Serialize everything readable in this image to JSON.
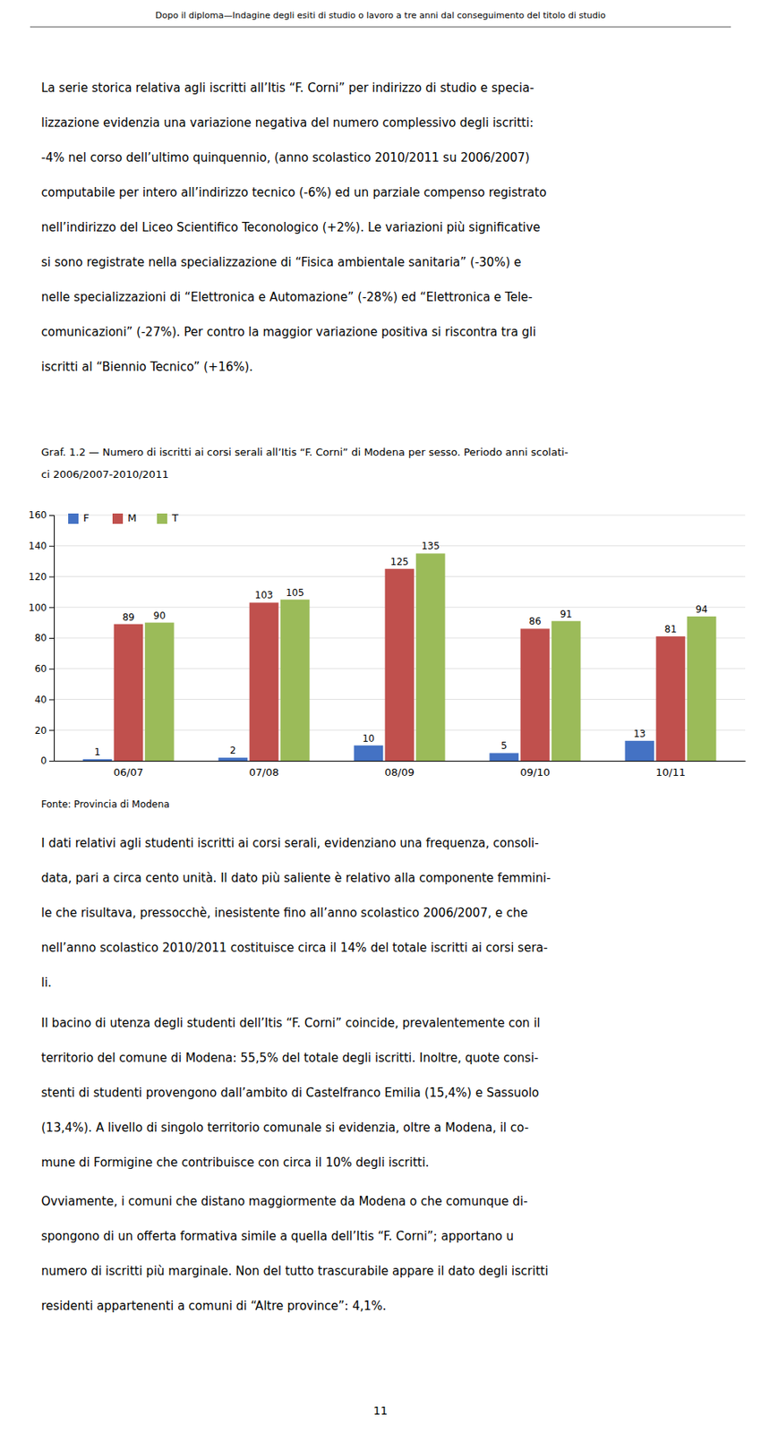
{
  "header": "Dopo il diploma—Indagine degli esiti di studio o lavoro a tre anni dal conseguimento del titolo di studio",
  "para1_lines": [
    "La serie storica relativa agli iscritti all’Itis “F. Corni”  per indirizzo di studio e specia-",
    "lizzazione evidenzia una variazione negativa del numero complessivo degli iscritti:",
    "-4% nel corso dell’ultimo quinquennio, (anno scolastico 2010/2011 su 2006/2007)",
    "computabile per intero all’indirizzo tecnico (-6%) ed un parziale compenso registrato",
    "nell’indirizzo del Liceo Scientifico Teconologico (+2%). Le variazioni più significative",
    "si sono registrate nella specializzazione di “Fisica ambientale sanitaria” (-30%) e",
    "nelle specializzazioni di “Elettronica e Automazione” (-28%) ed “Elettronica e Tele-",
    "comunicazioni” (-27%). Per contro la maggior variazione positiva si riscontra tra gli",
    "iscritti al “Biennio Tecnico” (+16%)."
  ],
  "caption_lines": [
    "Graf. 1.2 — Numero di iscritti ai corsi serali all’Itis “F. Corni” di Modena per sesso. Periodo anni scolati-",
    "ci 2006/2007-2010/2011"
  ],
  "chart_data": {
    "type": "bar",
    "categories": [
      "06/07",
      "07/08",
      "08/09",
      "09/10",
      "10/11"
    ],
    "series": [
      {
        "name": "F",
        "color": "#4472c4",
        "values": [
          1,
          2,
          10,
          5,
          13
        ]
      },
      {
        "name": "M",
        "color": "#c0504d",
        "values": [
          89,
          103,
          125,
          86,
          81
        ]
      },
      {
        "name": "T",
        "color": "#9bbb59",
        "values": [
          90,
          105,
          135,
          91,
          94
        ]
      }
    ],
    "ylim": [
      0,
      160
    ],
    "yticks": [
      0,
      20,
      40,
      60,
      80,
      100,
      120,
      140,
      160
    ],
    "grid": true,
    "legend": "top-left",
    "data_labels": true
  },
  "source": "Fonte: Provincia di Modena",
  "para2_lines": [
    "I dati relativi agli studenti iscritti ai corsi serali, evidenziano una frequenza, consoli-",
    "data, pari a circa cento unità. Il dato più saliente è relativo alla componente femmini-",
    "le che risultava, pressocchè, inesistente fino all’anno scolastico 2006/2007, e che",
    "nell’anno scolastico 2010/2011 costituisce circa il 14% del totale iscritti ai corsi sera-",
    "li."
  ],
  "para3_lines": [
    "Il bacino di utenza degli studenti dell’Itis “F. Corni” coincide, prevalentemente con il",
    "territorio del comune di Modena: 55,5% del totale degli iscritti. Inoltre, quote consi-",
    "stenti di studenti provengono dall’ambito di Castelfranco Emilia (15,4%) e Sassuolo",
    "(13,4%). A livello di singolo territorio comunale si evidenzia, oltre a Modena,  il co-",
    "mune di Formigine che contribuisce con circa il 10% degli iscritti."
  ],
  "para4_lines": [
    "Ovviamente, i comuni che distano maggiormente da Modena o che comunque di-",
    "spongono di un offerta formativa simile a quella dell’Itis “F. Corni”;  apportano u",
    "numero di iscritti più marginale. Non del tutto trascurabile appare il dato degli iscritti",
    "residenti appartenenti a comuni di “Altre province”: 4,1%."
  ],
  "page_number": "11"
}
